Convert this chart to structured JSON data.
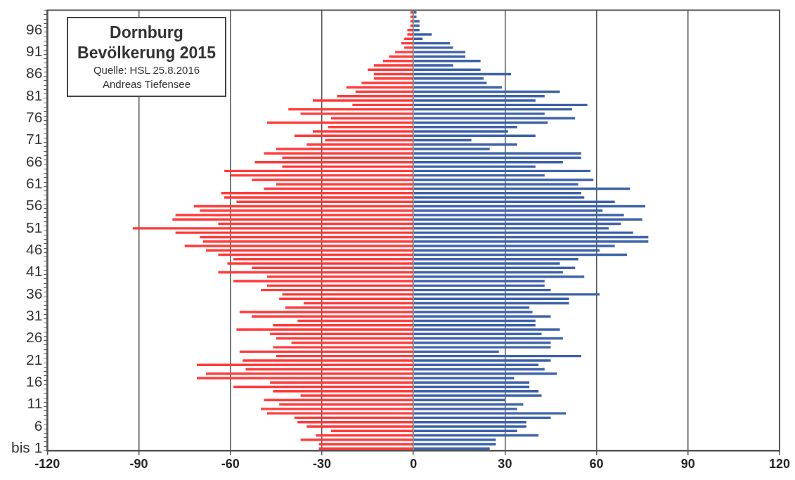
{
  "chart_data": {
    "type": "bar",
    "orientation": "horizontal",
    "stacked": true,
    "title": "Dornburg Bevölkerung 2015",
    "annotations": [
      "Quelle: HSL   25.8.2016",
      "Andreas Tiefensee"
    ],
    "categories": [
      null,
      null,
      null,
      null,
      "96",
      null,
      null,
      null,
      null,
      "91",
      null,
      null,
      null,
      null,
      "86",
      null,
      null,
      null,
      null,
      "81",
      null,
      null,
      null,
      null,
      "76",
      null,
      null,
      null,
      null,
      "71",
      null,
      null,
      null,
      null,
      "66",
      null,
      null,
      null,
      null,
      "61",
      null,
      null,
      null,
      null,
      "56",
      null,
      null,
      null,
      null,
      "51",
      null,
      null,
      null,
      null,
      "46",
      null,
      null,
      null,
      null,
      "41",
      null,
      null,
      null,
      null,
      "36",
      null,
      null,
      null,
      null,
      "31",
      null,
      null,
      null,
      null,
      "26",
      null,
      null,
      null,
      null,
      "21",
      null,
      null,
      null,
      null,
      "16",
      null,
      null,
      null,
      null,
      "11",
      null,
      null,
      null,
      null,
      "6",
      null,
      null,
      null,
      null,
      "bis 1"
    ],
    "series": [
      {
        "color": "#ff3b3b",
        "values": [
          -1,
          -1,
          -1,
          -1,
          -2,
          -2,
          -3,
          -4,
          -3,
          -6,
          -8,
          -10,
          -13,
          -15,
          -13,
          -13,
          -17,
          -22,
          -19,
          -25,
          -33,
          -20,
          -41,
          -37,
          -27,
          -48,
          -28,
          -33,
          -39,
          -29,
          -35,
          -45,
          -49,
          -43,
          -52,
          -43,
          -62,
          -60,
          -53,
          -45,
          -49,
          -63,
          -62,
          -58,
          -72,
          -70,
          -78,
          -79,
          -64,
          -92,
          -78,
          -70,
          -69,
          -75,
          -68,
          -64,
          -59,
          -61,
          -53,
          -64,
          -48,
          -59,
          -48,
          -50,
          -43,
          -44,
          -36,
          -42,
          -57,
          -53,
          -38,
          -46,
          -58,
          -47,
          -45,
          -40,
          -46,
          -57,
          -45,
          -56,
          -71,
          -55,
          -68,
          -71,
          -47,
          -59,
          -46,
          -37,
          -49,
          -44,
          -50,
          -48,
          -39,
          -38,
          -35,
          -27,
          -32,
          -37,
          -31,
          -31
        ]
      },
      {
        "color": "#3d62a8",
        "values": [
          1,
          1,
          2,
          2,
          2,
          6,
          3,
          12,
          13,
          17,
          17,
          22,
          13,
          22,
          32,
          23,
          24,
          29,
          48,
          43,
          40,
          57,
          52,
          43,
          53,
          44,
          34,
          31,
          40,
          19,
          34,
          25,
          55,
          55,
          49,
          40,
          58,
          43,
          59,
          54,
          71,
          55,
          56,
          66,
          76,
          62,
          69,
          75,
          68,
          64,
          72,
          77,
          77,
          66,
          61,
          70,
          54,
          48,
          53,
          49,
          56,
          43,
          43,
          45,
          61,
          51,
          51,
          38,
          39,
          45,
          40,
          40,
          48,
          42,
          49,
          45,
          45,
          28,
          55,
          45,
          41,
          43,
          47,
          33,
          38,
          38,
          41,
          42,
          30,
          36,
          34,
          50,
          45,
          37,
          37,
          34,
          41,
          27,
          27,
          25
        ]
      }
    ],
    "xlim": [
      -120,
      120
    ],
    "xticks": [
      -120,
      -90,
      -60,
      -30,
      0,
      30,
      60,
      90,
      120
    ],
    "grid": "x"
  }
}
